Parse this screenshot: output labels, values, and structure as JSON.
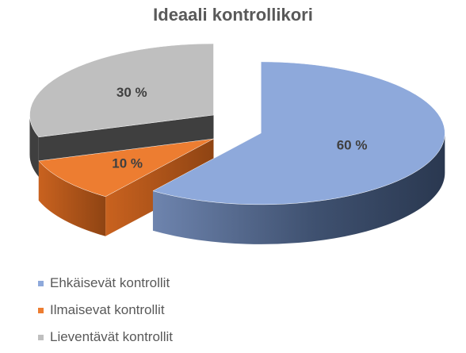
{
  "chart_data": {
    "type": "pie",
    "title": "Ideaali kontrollikori",
    "slices": [
      {
        "name": "Ehkäisevät kontrollit",
        "value": 60,
        "label": "60 %",
        "color": "#8EA9DB",
        "side_color": "#445670"
      },
      {
        "name": "Ilmaisevat kontrollit",
        "value": 10,
        "label": "10 %",
        "color": "#ED7D31",
        "side_color": "#A8531A"
      },
      {
        "name": "Lieventävät kontrollit",
        "value": 30,
        "label": "30 %",
        "color": "#BFBFBF",
        "side_color": "#3F3F3F"
      }
    ],
    "three_d": true,
    "exploded": true,
    "legend_position": "bottom-left"
  }
}
